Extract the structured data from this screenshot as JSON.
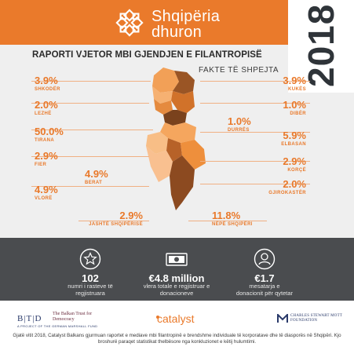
{
  "brand": {
    "line1": "Shqipëria",
    "line2": "dhuron",
    "icon": "flower-logo-icon"
  },
  "year": "2018",
  "title": "RAPORTI VJETOR MBI GJENDJEN E FILANTROPISË",
  "subtitle": "FAKTE TË SHPEJTA",
  "colors": {
    "accent": "#ea7a2b",
    "band": "#4a4c4f",
    "panel": "#efefef"
  },
  "stats_left": [
    {
      "pct": "3.9%",
      "label": "SHKODËR"
    },
    {
      "pct": "2.0%",
      "label": "LEZHË"
    },
    {
      "pct": "50.0%",
      "label": "TIRANA"
    },
    {
      "pct": "2.9%",
      "label": "FIER"
    },
    {
      "pct": "4.9%",
      "label": "VLORË"
    }
  ],
  "stats_inner_left": [
    {
      "pct": "4.9%",
      "label": "BERAT"
    },
    {
      "pct": "2.9%",
      "label": "JASHTË SHQIPËRISË"
    }
  ],
  "stats_right": [
    {
      "pct": "3.9%",
      "label": "KUKËS"
    },
    {
      "pct": "1.0%",
      "label": "DIBËR"
    },
    {
      "pct": "5.9%",
      "label": "ELBASAN"
    },
    {
      "pct": "2.9%",
      "label": "KORÇË"
    },
    {
      "pct": "2.0%",
      "label": "GJIROKASTËR"
    }
  ],
  "stats_inner_right": [
    {
      "pct": "1.0%",
      "label": "DURRËS"
    },
    {
      "pct": "11.8%",
      "label": "NËPË SHQIPËRI"
    }
  ],
  "summary": [
    {
      "icon": "star-icon",
      "value": "102",
      "desc": "numri i rasteve të regjistruara"
    },
    {
      "icon": "banknote-icon",
      "value": "€4.8 million",
      "desc": "vlera totale e regjistruar e donacioneve"
    },
    {
      "icon": "person-icon",
      "value": "€1.7",
      "desc": "mesatarja e donacionit për qytetar"
    }
  ],
  "logos": {
    "btd_mark": "B|T|D",
    "btd_name": "The Balkan Trust for Democracy",
    "btd_sub": "A PROJECT OF THE GERMAN MARSHALL FUND",
    "catalyst": "catalyst",
    "mott_name": "CHARLES STEWART MOTT FOUNDATION"
  },
  "footer": "Gjatë vitit 2018, Catalyst Balkans gjurmuan raportet e mediave mbi filantropinë e brendshme individuale të korporatave dhe të diasporës në Shqipëri. Kjo broshurë paraqet statistikat thelbësore nga konkluzionet e këtij hulumtimi."
}
